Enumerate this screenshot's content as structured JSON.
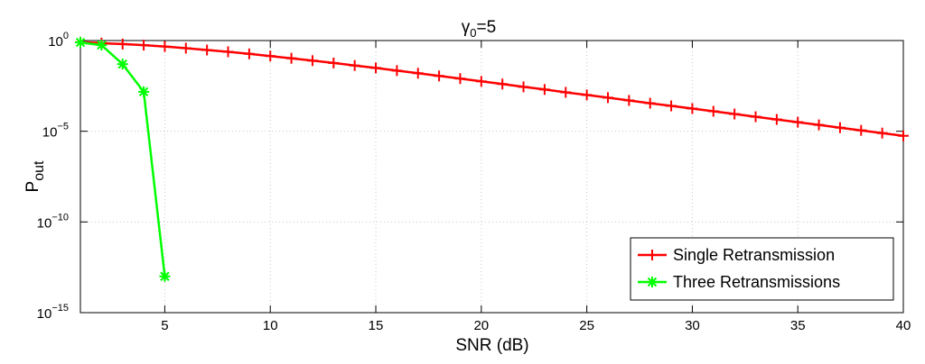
{
  "chart_data": {
    "type": "line",
    "title": {
      "main": "γ",
      "sub": "0",
      "rest": "=5"
    },
    "xlabel": "SNR  (dB)",
    "ylabel": {
      "main": "P",
      "sub": "out"
    },
    "xlim": [
      1,
      40
    ],
    "ylim": [
      1e-15,
      1.0
    ],
    "yscale": "log",
    "grid": true,
    "legend_position": "bottom-right",
    "x_ticks": [
      "5",
      "10",
      "15",
      "20",
      "25",
      "30",
      "35",
      "40"
    ],
    "x_tick_values": [
      5,
      10,
      15,
      20,
      25,
      30,
      35,
      40
    ],
    "y_ticks": [
      {
        "base": "10",
        "exp": "0",
        "value": 1
      },
      {
        "base": "10",
        "exp": "−5",
        "value": 1e-05
      },
      {
        "base": "10",
        "exp": "−10",
        "value": 1e-10
      },
      {
        "base": "10",
        "exp": "−15",
        "value": 1e-15
      }
    ],
    "series": [
      {
        "name": "Single Retransmission",
        "color": "#ff0000",
        "marker": "plus",
        "x": [
          1,
          2,
          3,
          4,
          5,
          6,
          7,
          8,
          9,
          10,
          11,
          12,
          13,
          14,
          15,
          16,
          17,
          18,
          19,
          20,
          21,
          22,
          23,
          24,
          25,
          26,
          27,
          28,
          29,
          30,
          31,
          32,
          33,
          34,
          35,
          36,
          37,
          38,
          39,
          40
        ],
        "y": [
          0.81,
          0.72,
          0.64,
          0.56,
          0.47,
          0.38,
          0.3,
          0.24,
          0.185,
          0.14,
          0.105,
          0.078,
          0.058,
          0.042,
          0.031,
          0.022,
          0.0158,
          0.0112,
          0.008,
          0.0056,
          0.004,
          0.0028,
          0.002,
          0.0014,
          0.001,
          0.00071,
          0.0005,
          0.00035,
          0.00025,
          0.000178,
          0.000126,
          8.91e-05,
          6.31e-05,
          4.47e-05,
          3.16e-05,
          2.24e-05,
          1.58e-05,
          1.12e-05,
          7.9e-06,
          5.6e-06
        ]
      },
      {
        "name": "Three Retransmissions",
        "color": "#00ff00",
        "marker": "star",
        "x": [
          1,
          2,
          3,
          4,
          5
        ],
        "y": [
          0.79,
          0.56,
          0.05,
          0.0015,
          1e-13
        ]
      }
    ]
  }
}
